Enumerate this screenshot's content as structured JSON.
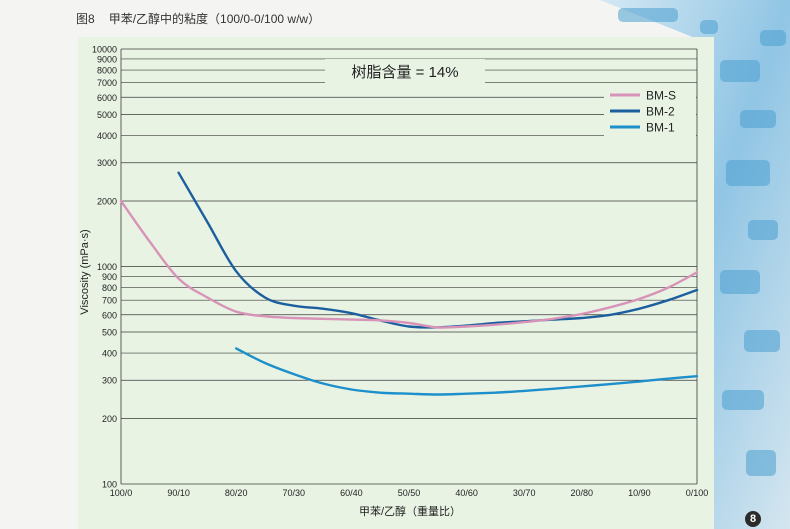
{
  "figure": {
    "number": "图8",
    "caption": "甲苯/乙醇中的粘度（100/0-0/100 w/w）"
  },
  "page_number": "8",
  "colors": {
    "panel": "#e9f3e4",
    "grid": "#3a3a3a",
    "bm_s": "#d893b8",
    "bm_2": "#1c5f9f",
    "bm_1": "#1d8fcb",
    "circuit": "#4a9fd0"
  },
  "chart_data": {
    "type": "line",
    "title": "树脂含量 = 14%",
    "xlabel": "甲苯/乙醇（重量比）",
    "ylabel": "Viscosity (mPa·s)",
    "y_scale": "log",
    "ylim": [
      100,
      10000
    ],
    "y_ticks": [
      100,
      200,
      300,
      400,
      500,
      600,
      700,
      800,
      900,
      1000,
      2000,
      3000,
      4000,
      5000,
      6000,
      7000,
      8000,
      9000,
      10000
    ],
    "y_tick_labels": [
      "100",
      "200",
      "300",
      "400",
      "500",
      "600",
      "700",
      "800",
      "900",
      "1000",
      "2000",
      "3000",
      "4000",
      "5000",
      "6000",
      "7000",
      "8000",
      "9000",
      "10000"
    ],
    "x_ticks": [
      100,
      90,
      80,
      70,
      60,
      50,
      40,
      30,
      20,
      10,
      0
    ],
    "x_tick_labels": [
      "100/0",
      "90/10",
      "80/20",
      "70/30",
      "60/40",
      "50/50",
      "40/60",
      "30/70",
      "20/80",
      "10/90",
      "0/100"
    ],
    "legend_position": "top-right",
    "grid": "horizontal",
    "series": [
      {
        "name": "BM-S",
        "color_key": "bm_s",
        "points": [
          [
            100,
            2000
          ],
          [
            95,
            1300
          ],
          [
            90,
            880
          ],
          [
            85,
            720
          ],
          [
            80,
            620
          ],
          [
            75,
            590
          ],
          [
            70,
            580
          ],
          [
            65,
            575
          ],
          [
            60,
            570
          ],
          [
            55,
            565
          ],
          [
            50,
            550
          ],
          [
            45,
            525
          ],
          [
            40,
            530
          ],
          [
            35,
            540
          ],
          [
            30,
            555
          ],
          [
            25,
            575
          ],
          [
            20,
            605
          ],
          [
            15,
            650
          ],
          [
            10,
            710
          ],
          [
            5,
            800
          ],
          [
            0,
            940
          ]
        ]
      },
      {
        "name": "BM-2",
        "color_key": "bm_2",
        "points": [
          [
            90,
            2700
          ],
          [
            85,
            1600
          ],
          [
            80,
            950
          ],
          [
            75,
            720
          ],
          [
            70,
            660
          ],
          [
            65,
            640
          ],
          [
            60,
            610
          ],
          [
            55,
            565
          ],
          [
            50,
            530
          ],
          [
            45,
            525
          ],
          [
            40,
            535
          ],
          [
            35,
            550
          ],
          [
            30,
            560
          ],
          [
            25,
            570
          ],
          [
            20,
            580
          ],
          [
            15,
            600
          ],
          [
            10,
            640
          ],
          [
            5,
            700
          ],
          [
            0,
            780
          ]
        ]
      },
      {
        "name": "BM-1",
        "color_key": "bm_1",
        "points": [
          [
            80,
            420
          ],
          [
            75,
            360
          ],
          [
            70,
            320
          ],
          [
            65,
            290
          ],
          [
            60,
            272
          ],
          [
            55,
            263
          ],
          [
            50,
            260
          ],
          [
            45,
            258
          ],
          [
            40,
            260
          ],
          [
            35,
            263
          ],
          [
            30,
            268
          ],
          [
            25,
            274
          ],
          [
            20,
            281
          ],
          [
            15,
            288
          ],
          [
            10,
            296
          ],
          [
            5,
            305
          ],
          [
            0,
            313
          ]
        ]
      }
    ]
  }
}
